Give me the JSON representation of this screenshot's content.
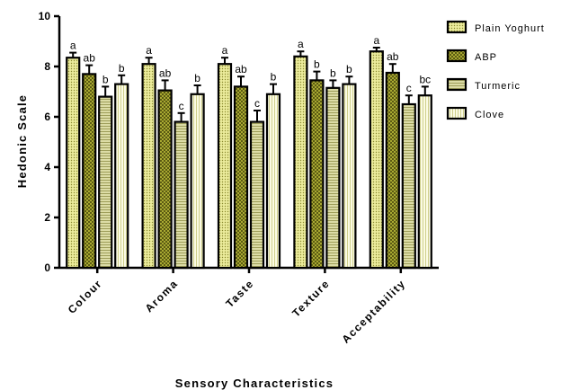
{
  "chart_data": {
    "type": "bar",
    "title": "",
    "xlabel": "Sensory Characteristics",
    "ylabel": "Hedonic Scale",
    "ylim": [
      0,
      10
    ],
    "yticks": [
      "0",
      "2",
      "4",
      "6",
      "8",
      "10"
    ],
    "grid": false,
    "legend_position": "top-right",
    "categories": [
      "Colour",
      "Aroma",
      "Taste",
      "Texture",
      "Acceptability"
    ],
    "series": [
      {
        "name": "Plain Yoghurt",
        "values": [
          8.35,
          8.1,
          8.1,
          8.4,
          8.6
        ],
        "errors": [
          0.2,
          0.25,
          0.25,
          0.2,
          0.15
        ],
        "labels": [
          "a",
          "a",
          "a",
          "a",
          "a"
        ],
        "color": "#ecec9c",
        "pattern": "dots"
      },
      {
        "name": "ABP",
        "values": [
          7.7,
          7.05,
          7.2,
          7.45,
          7.75
        ],
        "errors": [
          0.35,
          0.4,
          0.4,
          0.35,
          0.35
        ],
        "labels": [
          "ab",
          "ab",
          "ab",
          "b",
          "ab"
        ],
        "color": "#a8a832",
        "pattern": "check"
      },
      {
        "name": "Turmeric",
        "values": [
          6.8,
          5.8,
          5.8,
          7.15,
          6.5
        ],
        "errors": [
          0.4,
          0.35,
          0.45,
          0.3,
          0.35
        ],
        "labels": [
          "b",
          "c",
          "c",
          "b",
          "c"
        ],
        "color": "#cbcb8a",
        "pattern": "hlines"
      },
      {
        "name": "Clove",
        "values": [
          7.3,
          6.9,
          6.9,
          7.3,
          6.85
        ],
        "errors": [
          0.35,
          0.35,
          0.4,
          0.3,
          0.35
        ],
        "labels": [
          "b",
          "b",
          "b",
          "b",
          "bc"
        ],
        "color": "#f7f7d2",
        "pattern": "vlines"
      }
    ]
  }
}
